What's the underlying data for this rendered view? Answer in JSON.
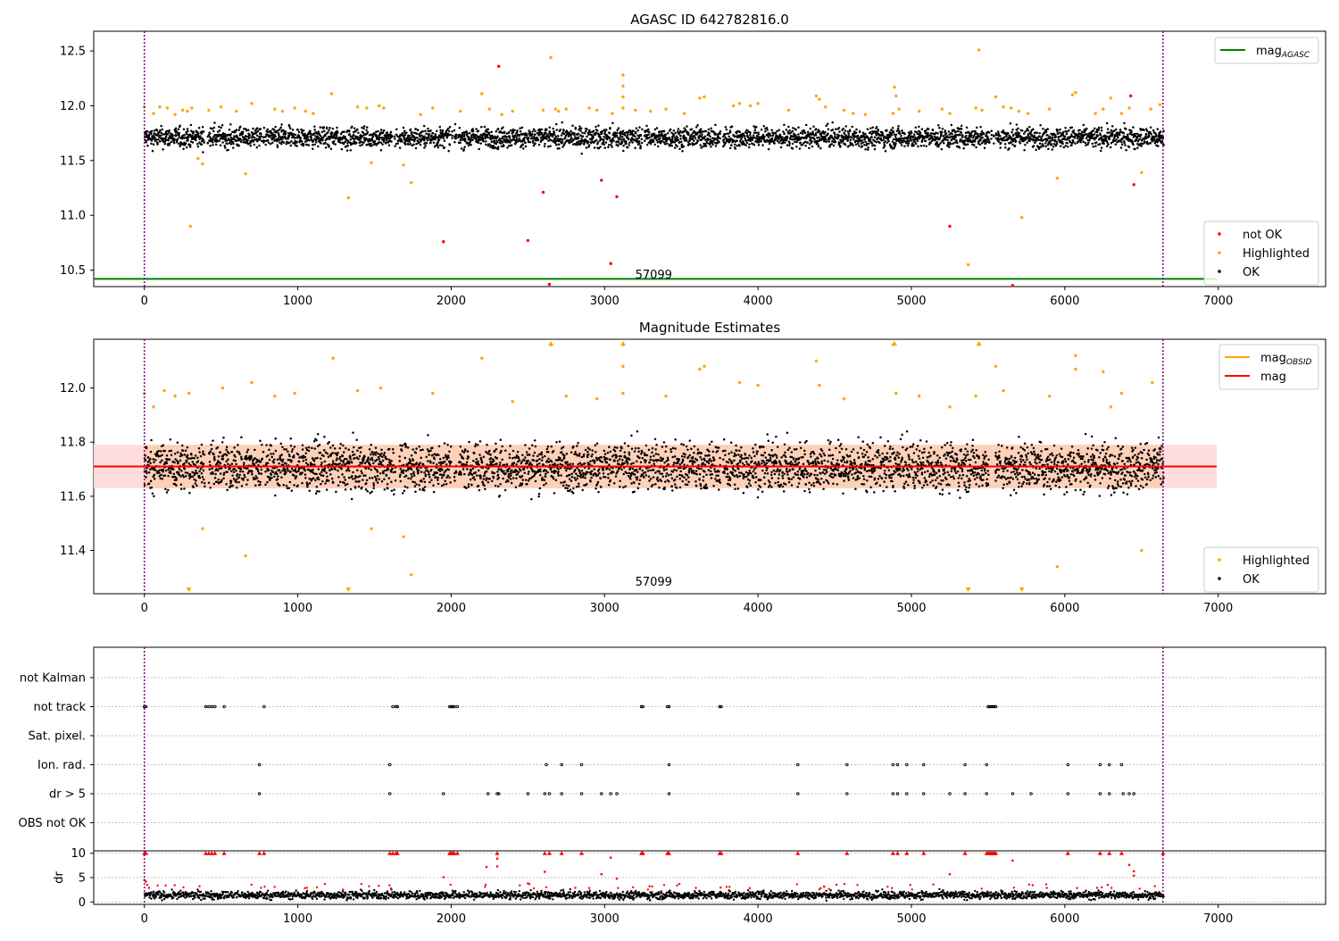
{
  "colors": {
    "ok": "#000000",
    "highlighted": "#ffa500",
    "not_ok": "#ff0000",
    "agasc_line": "#008000",
    "obsid_line": "#ffa500",
    "mag_line": "#ff0000",
    "band": "#ffdddd",
    "band_inner": "#ffd0b8",
    "vline": "#800080",
    "grid": "#b0b0b0"
  },
  "chart_data": [
    {
      "type": "scatter",
      "id": "agasc",
      "title": "AGASC ID 642782816.0",
      "xlim": [
        -330,
        7700
      ],
      "ylim": [
        10.35,
        12.68
      ],
      "xticks": [
        0,
        1000,
        2000,
        3000,
        4000,
        5000,
        6000,
        7000
      ],
      "yticks": [
        10.5,
        11.0,
        11.5,
        12.0,
        12.5
      ],
      "ytick_labels": [
        "10.5",
        "11.0",
        "11.5",
        "12.0",
        "12.5"
      ],
      "vlines": [
        0,
        6640
      ],
      "hline": {
        "label": "mag",
        "sub": "AGASC",
        "y": 10.42
      },
      "annotation": {
        "text": "57099",
        "x": 3320
      },
      "legend_top": {
        "position": "top-right",
        "entries": [
          {
            "label": "mag",
            "sub": "AGASC",
            "color": "#008000"
          }
        ]
      },
      "legend_bottom": {
        "position": "lower-right",
        "entries": [
          {
            "label": "not OK",
            "color": "#ff0000"
          },
          {
            "label": "Highlighted",
            "color": "#ffa500"
          },
          {
            "label": "OK",
            "color": "#000000"
          }
        ]
      },
      "ok_band": {
        "x_range": [
          0,
          6640
        ],
        "center": 11.71,
        "spread": 0.08
      },
      "highlighted": [
        [
          0,
          11.99
        ],
        [
          60,
          11.93
        ],
        [
          100,
          11.99
        ],
        [
          150,
          11.98
        ],
        [
          200,
          11.92
        ],
        [
          250,
          11.96
        ],
        [
          280,
          11.95
        ],
        [
          300,
          10.9
        ],
        [
          310,
          11.98
        ],
        [
          350,
          11.52
        ],
        [
          380,
          11.47
        ],
        [
          420,
          11.96
        ],
        [
          500,
          11.99
        ],
        [
          600,
          11.95
        ],
        [
          660,
          11.38
        ],
        [
          700,
          12.02
        ],
        [
          850,
          11.97
        ],
        [
          900,
          11.95
        ],
        [
          980,
          11.98
        ],
        [
          1050,
          11.95
        ],
        [
          1100,
          11.93
        ],
        [
          1220,
          12.11
        ],
        [
          1330,
          11.16
        ],
        [
          1390,
          11.99
        ],
        [
          1450,
          11.98
        ],
        [
          1480,
          11.48
        ],
        [
          1530,
          12.0
        ],
        [
          1560,
          11.98
        ],
        [
          1690,
          11.46
        ],
        [
          1740,
          11.3
        ],
        [
          1800,
          11.92
        ],
        [
          1880,
          11.98
        ],
        [
          2060,
          11.95
        ],
        [
          2200,
          12.11
        ],
        [
          2250,
          11.97
        ],
        [
          2330,
          11.92
        ],
        [
          2400,
          11.95
        ],
        [
          2600,
          11.96
        ],
        [
          2650,
          12.44
        ],
        [
          2680,
          11.97
        ],
        [
          2700,
          11.95
        ],
        [
          2750,
          11.97
        ],
        [
          2900,
          11.98
        ],
        [
          2950,
          11.96
        ],
        [
          3050,
          11.93
        ],
        [
          3120,
          12.28
        ],
        [
          3120,
          12.18
        ],
        [
          3120,
          12.08
        ],
        [
          3120,
          11.98
        ],
        [
          3200,
          11.96
        ],
        [
          3300,
          11.95
        ],
        [
          3400,
          11.97
        ],
        [
          3520,
          11.93
        ],
        [
          3620,
          12.07
        ],
        [
          3650,
          12.08
        ],
        [
          3840,
          12.0
        ],
        [
          3880,
          12.02
        ],
        [
          3950,
          12.0
        ],
        [
          4000,
          12.02
        ],
        [
          4200,
          11.96
        ],
        [
          4380,
          12.09
        ],
        [
          4400,
          12.06
        ],
        [
          4440,
          11.99
        ],
        [
          4560,
          11.96
        ],
        [
          4620,
          11.93
        ],
        [
          4700,
          11.92
        ],
        [
          4880,
          11.93
        ],
        [
          4890,
          12.17
        ],
        [
          4900,
          12.09
        ],
        [
          4920,
          11.97
        ],
        [
          5050,
          11.95
        ],
        [
          5200,
          11.97
        ],
        [
          5250,
          11.93
        ],
        [
          5370,
          10.55
        ],
        [
          5420,
          11.98
        ],
        [
          5440,
          12.51
        ],
        [
          5460,
          11.96
        ],
        [
          5550,
          12.08
        ],
        [
          5600,
          11.99
        ],
        [
          5650,
          11.98
        ],
        [
          5700,
          11.95
        ],
        [
          5720,
          10.98
        ],
        [
          5760,
          11.93
        ],
        [
          5900,
          11.97
        ],
        [
          5950,
          11.34
        ],
        [
          6050,
          12.1
        ],
        [
          6070,
          12.12
        ],
        [
          6200,
          11.93
        ],
        [
          6250,
          11.97
        ],
        [
          6300,
          12.07
        ],
        [
          6370,
          11.93
        ],
        [
          6420,
          11.98
        ],
        [
          6500,
          11.39
        ],
        [
          6560,
          11.97
        ],
        [
          6620,
          12.01
        ]
      ],
      "not_ok": [
        [
          2310,
          12.36
        ],
        [
          2640,
          10.37
        ],
        [
          1950,
          10.76
        ],
        [
          2500,
          10.77
        ],
        [
          2600,
          11.21
        ],
        [
          2980,
          11.32
        ],
        [
          3040,
          10.56
        ],
        [
          3080,
          11.17
        ],
        [
          5250,
          10.9
        ],
        [
          5660,
          10.36
        ],
        [
          6430,
          12.09
        ],
        [
          6450,
          11.28
        ]
      ]
    },
    {
      "type": "scatter",
      "id": "estimates",
      "title": "Magnitude Estimates",
      "xlim": [
        -330,
        7700
      ],
      "ylim": [
        11.24,
        12.18
      ],
      "xticks": [
        0,
        1000,
        2000,
        3000,
        4000,
        5000,
        6000,
        7000
      ],
      "yticks": [
        11.4,
        11.6,
        11.8,
        12.0
      ],
      "ytick_labels": [
        "11.4",
        "11.6",
        "11.8",
        "12.0"
      ],
      "vlines": [
        0,
        6640
      ],
      "mag_line": 11.71,
      "band": [
        11.63,
        11.79
      ],
      "annotation": {
        "text": "57099",
        "x": 3320
      },
      "legend_top": {
        "position": "top-right",
        "entries": [
          {
            "label": "mag",
            "sub": "OBSID",
            "color": "#ffa500"
          },
          {
            "label": "mag",
            "sub": "",
            "color": "#ff0000"
          }
        ]
      },
      "legend_bottom": {
        "position": "lower-right",
        "entries": [
          {
            "label": "Highlighted",
            "color": "#ffa500"
          },
          {
            "label": "OK",
            "color": "#000000"
          }
        ]
      },
      "ok_band": {
        "x_range": [
          0,
          6640
        ],
        "center": 11.71,
        "spread": 0.075
      },
      "highlighted": [
        [
          0,
          11.98
        ],
        [
          60,
          11.93
        ],
        [
          130,
          11.99
        ],
        [
          200,
          11.97
        ],
        [
          290,
          11.98
        ],
        [
          380,
          11.48
        ],
        [
          510,
          12.0
        ],
        [
          660,
          11.38
        ],
        [
          700,
          12.02
        ],
        [
          850,
          11.97
        ],
        [
          980,
          11.98
        ],
        [
          1230,
          12.11
        ],
        [
          1390,
          11.99
        ],
        [
          1480,
          11.48
        ],
        [
          1540,
          12.0
        ],
        [
          1690,
          11.45
        ],
        [
          1740,
          11.31
        ],
        [
          1880,
          11.98
        ],
        [
          2200,
          12.11
        ],
        [
          2400,
          11.95
        ],
        [
          2650,
          12.16
        ],
        [
          2750,
          11.97
        ],
        [
          2950,
          11.96
        ],
        [
          3120,
          12.16
        ],
        [
          3120,
          12.08
        ],
        [
          3120,
          11.98
        ],
        [
          3400,
          11.97
        ],
        [
          3620,
          12.07
        ],
        [
          3650,
          12.08
        ],
        [
          3880,
          12.02
        ],
        [
          4000,
          12.01
        ],
        [
          4380,
          12.1
        ],
        [
          4400,
          12.01
        ],
        [
          4560,
          11.96
        ],
        [
          4880,
          12.16
        ],
        [
          4900,
          11.98
        ],
        [
          5050,
          11.97
        ],
        [
          5250,
          11.93
        ],
        [
          5440,
          12.16
        ],
        [
          5420,
          11.97
        ],
        [
          5550,
          12.08
        ],
        [
          5600,
          11.99
        ],
        [
          5900,
          11.97
        ],
        [
          5950,
          11.34
        ],
        [
          6070,
          12.12
        ],
        [
          6070,
          12.07
        ],
        [
          6250,
          12.06
        ],
        [
          6300,
          11.93
        ],
        [
          6370,
          11.98
        ],
        [
          6500,
          11.4
        ],
        [
          6570,
          12.02
        ]
      ],
      "markers_down": [
        290,
        1330,
        5370,
        5720
      ],
      "markers_up": [
        2650,
        3120,
        4890,
        5440
      ]
    },
    {
      "type": "scatter",
      "id": "flags",
      "xlim": [
        -330,
        7700
      ],
      "xticks": [
        0,
        1000,
        2000,
        3000,
        4000,
        5000,
        6000,
        7000
      ],
      "vlines": [
        0,
        6640
      ],
      "categories": [
        "not Kalman",
        "not track",
        "Sat. pixel.",
        "Ion. rad.",
        "dr > 5",
        "OBS not OK"
      ],
      "events": {
        "not track": [
          0,
          10,
          400,
          420,
          440,
          460,
          520,
          780,
          1620,
          1640,
          1650,
          1990,
          2000,
          2010,
          2020,
          2040,
          3240,
          3250,
          3410,
          3420,
          3750,
          3760,
          5500,
          5510,
          5520,
          5530,
          5540,
          5550
        ],
        "Ion. rad.": [
          750,
          1600,
          2620,
          2720,
          2850,
          3420,
          4260,
          4580,
          4880,
          4910,
          4970,
          5080,
          5350,
          5490,
          6020,
          6230,
          6290,
          6370
        ],
        "dr > 5": [
          750,
          1600,
          1950,
          2240,
          2300,
          2310,
          2500,
          2610,
          2640,
          2720,
          2850,
          2980,
          3040,
          3080,
          3420,
          4260,
          4580,
          4880,
          4910,
          4970,
          5080,
          5250,
          5350,
          5490,
          5660,
          5780,
          6020,
          6230,
          6290,
          6380,
          6420,
          6450
        ]
      }
    },
    {
      "type": "scatter",
      "id": "dr",
      "xlim": [
        -330,
        7700
      ],
      "ylim": [
        -0.5,
        10.5
      ],
      "xticks": [
        0,
        1000,
        2000,
        3000,
        4000,
        5000,
        6000,
        7000
      ],
      "xtick_labels": [
        "0",
        "1000",
        "2000",
        "3000",
        "4000",
        "5000",
        "6000",
        "7000"
      ],
      "yticks": [
        0,
        5,
        10
      ],
      "ytick_labels": [
        "0",
        "5",
        "10"
      ],
      "ylabel": "dr",
      "vlines": [
        0,
        6640
      ],
      "ok_band": {
        "x_range": [
          0,
          6640
        ],
        "center": 1.4,
        "spread": 0.7
      },
      "clipped_x": [
        0,
        10,
        400,
        420,
        440,
        460,
        520,
        750,
        780,
        1600,
        1620,
        1640,
        1650,
        1990,
        2000,
        2010,
        2020,
        2040,
        2300,
        2610,
        2640,
        2720,
        2850,
        3240,
        3250,
        3410,
        3420,
        3750,
        3760,
        4260,
        4580,
        4880,
        4910,
        4970,
        5080,
        5350,
        5490,
        5500,
        5510,
        5520,
        5530,
        5540,
        5550,
        6020,
        6230,
        6290,
        6370,
        6640
      ],
      "red_scatter": [
        [
          0,
          4.5
        ],
        [
          10,
          4.2
        ],
        [
          2230,
          7.2
        ],
        [
          2300,
          8.9
        ],
        [
          2300,
          7.3
        ],
        [
          2610,
          6.2
        ],
        [
          3040,
          9.1
        ],
        [
          2980,
          5.7
        ],
        [
          3080,
          4.8
        ],
        [
          5250,
          5.7
        ],
        [
          5660,
          8.5
        ],
        [
          6420,
          7.6
        ],
        [
          6450,
          6.3
        ],
        [
          6450,
          5.4
        ],
        [
          1950,
          5.1
        ],
        [
          2500,
          3.8
        ]
      ]
    }
  ]
}
